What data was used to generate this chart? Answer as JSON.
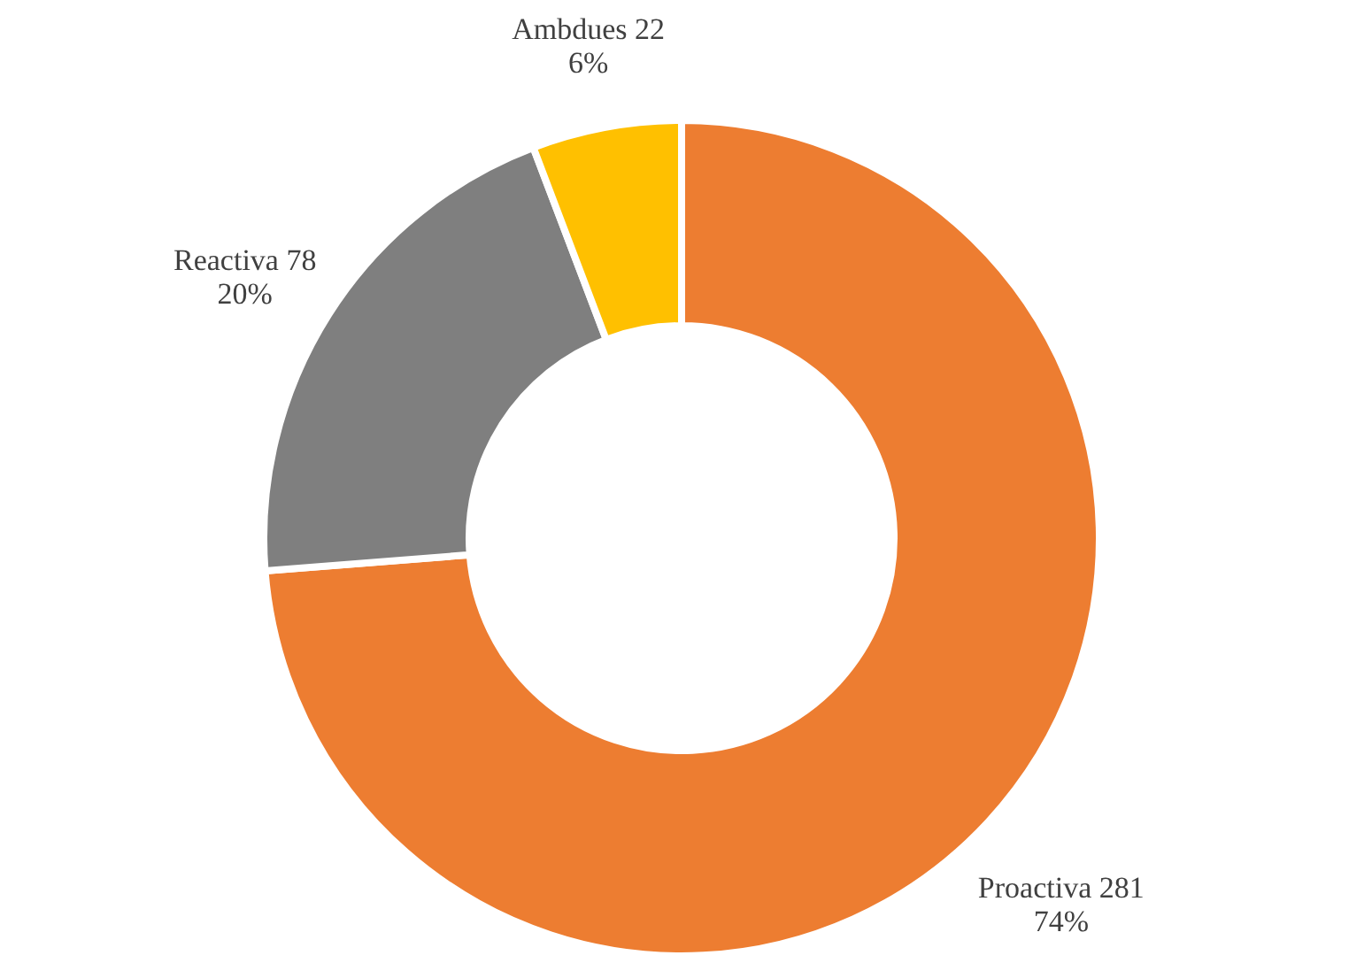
{
  "chart_data": {
    "type": "donut",
    "categories": [
      "Proactiva",
      "Reactiva",
      "Ambdues"
    ],
    "values": [
      281,
      78,
      22
    ],
    "colors": [
      "#ed7d31",
      "#7f7f7f",
      "#ffc000"
    ],
    "value_labels": [
      "281\n74%",
      "78\n20%",
      "22\n6%"
    ]
  }
}
